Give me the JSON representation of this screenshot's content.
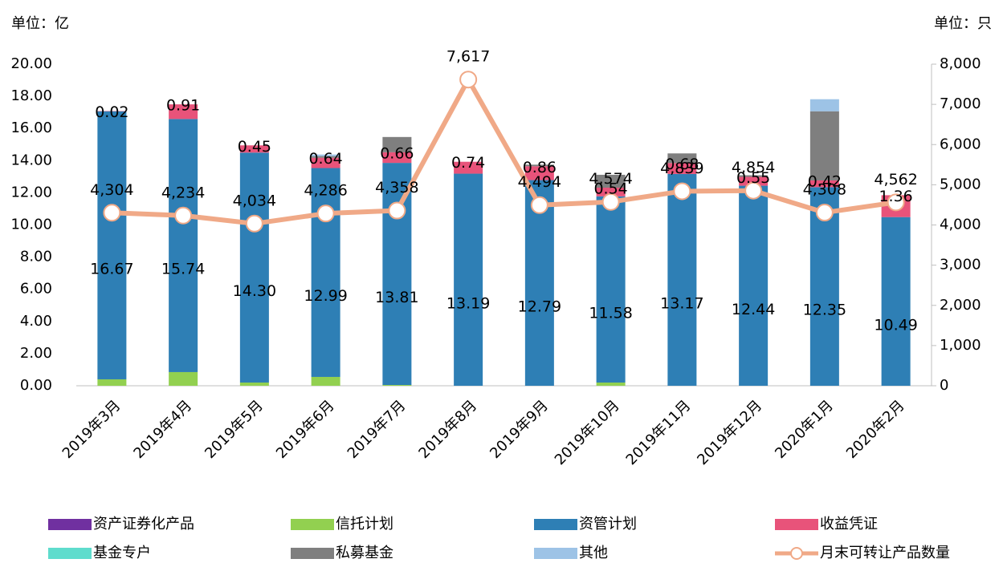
{
  "chart_data": {
    "type": "bar_line",
    "ylabel": "单位：亿",
    "y2label": "单位：只",
    "categories": [
      "2019年3月",
      "2019年4月",
      "2019年5月",
      "2019年6月",
      "2019年7月",
      "2019年8月",
      "2019年9月",
      "2019年10月",
      "2019年11月",
      "2019年12月",
      "2020年1月",
      "2020年2月"
    ],
    "ylim": [
      0,
      20
    ],
    "yticks": [
      {
        "value": 0,
        "label": "0.00"
      },
      {
        "value": 2,
        "label": "2.00"
      },
      {
        "value": 4,
        "label": "4.00"
      },
      {
        "value": 6,
        "label": "6.00"
      },
      {
        "value": 8,
        "label": "8.00"
      },
      {
        "value": 10,
        "label": "10.00"
      },
      {
        "value": 12,
        "label": "12.00"
      },
      {
        "value": 14,
        "label": "14.00"
      },
      {
        "value": 16,
        "label": "16.00"
      },
      {
        "value": 18,
        "label": "18.00"
      },
      {
        "value": 20,
        "label": "20.00"
      }
    ],
    "y2lim": [
      0,
      8000
    ],
    "y2ticks": [
      0,
      {
        "value": 1000,
        "label": "1,000"
      },
      {
        "value": 2000,
        "label": "2,000"
      },
      {
        "value": 3000,
        "label": "3,000"
      },
      {
        "value": 4000,
        "label": "4,000"
      },
      {
        "value": 5000,
        "label": "5,000"
      },
      {
        "value": 6000,
        "label": "6,000"
      },
      {
        "value": 7000,
        "label": "7,000"
      },
      {
        "value": 8000,
        "label": "8,000"
      }
    ],
    "series": [
      {
        "name": "资产证券化产品",
        "color": "#7030a0",
        "show_labels": false,
        "values": [
          0,
          0,
          0,
          0,
          0,
          0,
          0,
          0,
          0,
          0,
          0,
          0
        ]
      },
      {
        "name": "信托计划",
        "color": "#92d050",
        "show_labels": false,
        "values": [
          0.4,
          0.85,
          0.2,
          0.55,
          0.05,
          0,
          0,
          0.2,
          0,
          0,
          0,
          0
        ]
      },
      {
        "name": "资管计划",
        "color": "#2e7fb5",
        "show_labels": true,
        "values": [
          16.67,
          15.74,
          14.3,
          12.99,
          13.81,
          13.19,
          12.79,
          11.58,
          13.17,
          12.44,
          12.35,
          10.49
        ],
        "value_labels": [
          "16.67",
          "15.74",
          "14.30",
          "12.99",
          "13.81",
          "13.19",
          "12.79",
          "11.58",
          "13.17",
          "12.44",
          "12.35",
          "10.49"
        ]
      },
      {
        "name": "收益凭证",
        "color": "#e8537a",
        "show_labels": true,
        "values": [
          0.02,
          0.91,
          0.45,
          0.64,
          0.66,
          0.74,
          0.86,
          0.54,
          0.68,
          0.55,
          0.42,
          1.36
        ]
      },
      {
        "name": "基金专户",
        "color": "#5fdccd",
        "show_labels": false,
        "values": [
          0,
          0,
          0,
          0,
          0,
          0,
          0,
          0,
          0,
          0,
          0,
          0
        ]
      },
      {
        "name": "私募基金",
        "color": "#7f7f7f",
        "show_labels": false,
        "values": [
          0,
          0,
          0,
          0.1,
          0.95,
          0,
          0.1,
          0.8,
          0.6,
          0.1,
          4.3,
          0
        ]
      },
      {
        "name": "其他",
        "color": "#9dc3e6",
        "show_labels": false,
        "values": [
          0,
          0,
          0,
          0.1,
          0,
          0,
          0,
          0,
          0,
          0,
          0.75,
          0
        ]
      },
      {
        "name": "月末可转让产品数量",
        "color": "#f0a987",
        "axis": "y2",
        "type": "line",
        "values": [
          4304,
          4234,
          4034,
          4286,
          4358,
          7617,
          4494,
          4574,
          4839,
          4854,
          4308,
          4562
        ],
        "value_labels": [
          "4,304",
          "4,234",
          "4,034",
          "4,286",
          "4,358",
          "7,617",
          "4,494",
          "4,574",
          "4,839",
          "4,854",
          "4,308",
          "4,562"
        ]
      }
    ]
  }
}
